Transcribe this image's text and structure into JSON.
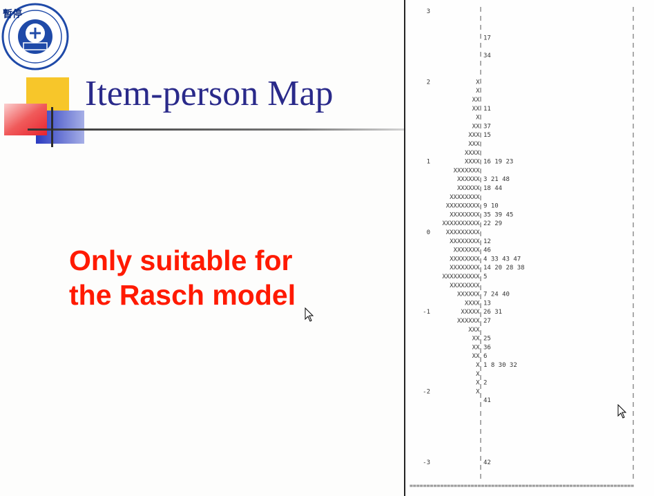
{
  "header": {
    "paused_label": "暫停",
    "logo_icon": "university-seal-icon"
  },
  "slide": {
    "title": "Item-person Map",
    "message_line1": "Only suitable for",
    "message_line2": "the Rasch model",
    "colors": {
      "title": "#2a2a8a",
      "message": "#ff1a00",
      "deco_yellow": "#f7c62a",
      "deco_red": "#e8232e",
      "deco_blue": "#2a3ac0"
    }
  },
  "item_map": {
    "rows": [
      {
        "measure": "3",
        "persons": "",
        "items": ""
      },
      {
        "measure": "",
        "persons": "",
        "items": ""
      },
      {
        "measure": "",
        "persons": "",
        "items": ""
      },
      {
        "measure": "",
        "persons": "",
        "items": "17"
      },
      {
        "measure": "",
        "persons": "",
        "items": ""
      },
      {
        "measure": "",
        "persons": "",
        "items": "34"
      },
      {
        "measure": "",
        "persons": "",
        "items": ""
      },
      {
        "measure": "",
        "persons": "",
        "items": ""
      },
      {
        "measure": "2",
        "persons": "X",
        "items": ""
      },
      {
        "measure": "",
        "persons": "X",
        "items": ""
      },
      {
        "measure": "",
        "persons": "XX",
        "items": ""
      },
      {
        "measure": "",
        "persons": "XX",
        "items": "11"
      },
      {
        "measure": "",
        "persons": "X",
        "items": ""
      },
      {
        "measure": "",
        "persons": "XX",
        "items": "37"
      },
      {
        "measure": "",
        "persons": "XXX",
        "items": "15"
      },
      {
        "measure": "",
        "persons": "XXX",
        "items": ""
      },
      {
        "measure": "",
        "persons": "XXXX",
        "items": ""
      },
      {
        "measure": "1",
        "persons": "XXXX",
        "items": "16 19 23"
      },
      {
        "measure": "",
        "persons": "XXXXXXX",
        "items": ""
      },
      {
        "measure": "",
        "persons": "XXXXXX",
        "items": "3 21 48"
      },
      {
        "measure": "",
        "persons": "XXXXXX",
        "items": "18 44"
      },
      {
        "measure": "",
        "persons": "XXXXXXXX",
        "items": ""
      },
      {
        "measure": "",
        "persons": "XXXXXXXXX",
        "items": "9 10"
      },
      {
        "measure": "",
        "persons": "XXXXXXXX",
        "items": "35 39 45"
      },
      {
        "measure": "",
        "persons": "XXXXXXXXXX",
        "items": "22 29"
      },
      {
        "measure": "0",
        "persons": "XXXXXXXXX",
        "items": ""
      },
      {
        "measure": "",
        "persons": "XXXXXXXX",
        "items": "12"
      },
      {
        "measure": "",
        "persons": "XXXXXXX",
        "items": "46"
      },
      {
        "measure": "",
        "persons": "XXXXXXXX",
        "items": "4 33 43 47"
      },
      {
        "measure": "",
        "persons": "XXXXXXXX",
        "items": "14 20 28 38"
      },
      {
        "measure": "",
        "persons": "XXXXXXXXXX",
        "items": "5"
      },
      {
        "measure": "",
        "persons": "XXXXXXXX",
        "items": ""
      },
      {
        "measure": "",
        "persons": "XXXXXX",
        "items": "7 24 40"
      },
      {
        "measure": "",
        "persons": "XXXX",
        "items": "13"
      },
      {
        "measure": "-1",
        "persons": "XXXXX",
        "items": "26 31"
      },
      {
        "measure": "",
        "persons": "XXXXXX",
        "items": "27"
      },
      {
        "measure": "",
        "persons": "XXX",
        "items": ""
      },
      {
        "measure": "",
        "persons": "XX",
        "items": "25"
      },
      {
        "measure": "",
        "persons": "XX",
        "items": "36"
      },
      {
        "measure": "",
        "persons": "XX",
        "items": "6"
      },
      {
        "measure": "",
        "persons": "X",
        "items": "1 8 30 32"
      },
      {
        "measure": "",
        "persons": "X",
        "items": ""
      },
      {
        "measure": "",
        "persons": "X",
        "items": "2"
      },
      {
        "measure": "-2",
        "persons": "X",
        "items": ""
      },
      {
        "measure": "",
        "persons": "",
        "items": "41"
      },
      {
        "measure": "",
        "persons": "",
        "items": ""
      },
      {
        "measure": "",
        "persons": "",
        "items": ""
      },
      {
        "measure": "",
        "persons": "",
        "items": ""
      },
      {
        "measure": "",
        "persons": "",
        "items": ""
      },
      {
        "measure": "",
        "persons": "",
        "items": ""
      },
      {
        "measure": "",
        "persons": "",
        "items": ""
      },
      {
        "measure": "-3",
        "persons": "",
        "items": "42"
      },
      {
        "measure": "",
        "persons": "",
        "items": ""
      },
      {
        "measure": "",
        "persons": "",
        "items": ""
      }
    ],
    "bottom_rule": "=================================================================="
  },
  "cursors": [
    "arrow-cursor-icon",
    "arrow-cursor-icon"
  ]
}
